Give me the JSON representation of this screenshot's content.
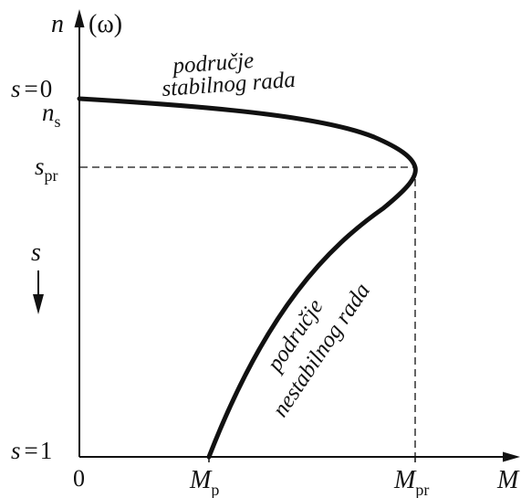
{
  "axes": {
    "y_axis_label": "n",
    "y_axis_label_extra": "(ω)",
    "x_axis_label": "M",
    "origin_label": "0"
  },
  "left_labels": {
    "s_top_symbol": "s",
    "s_top_value": "0",
    "ns_symbol": "n",
    "ns_subscript": "s",
    "spr_symbol": "s",
    "spr_subscript": "pr",
    "s_axis_symbol": "s",
    "s_bottom_symbol": "s",
    "s_bottom_value": "1"
  },
  "bottom_labels": {
    "mp_symbol": "M",
    "mp_subscript": "p",
    "mpr_symbol": "M",
    "mpr_subscript": "pr"
  },
  "regions": {
    "stable_line1": "područje",
    "stable_line2": "stabilnog rada",
    "unstable_line1": "područje",
    "unstable_line2": "nestabilnog rada"
  },
  "icons": {
    "y_axis_arrow": "arrow-up-icon",
    "x_axis_arrow": "arrow-right-icon",
    "slip_direction_arrow": "arrow-down-icon"
  },
  "colors": {
    "ink": "#111111",
    "background": "#ffffff"
  }
}
